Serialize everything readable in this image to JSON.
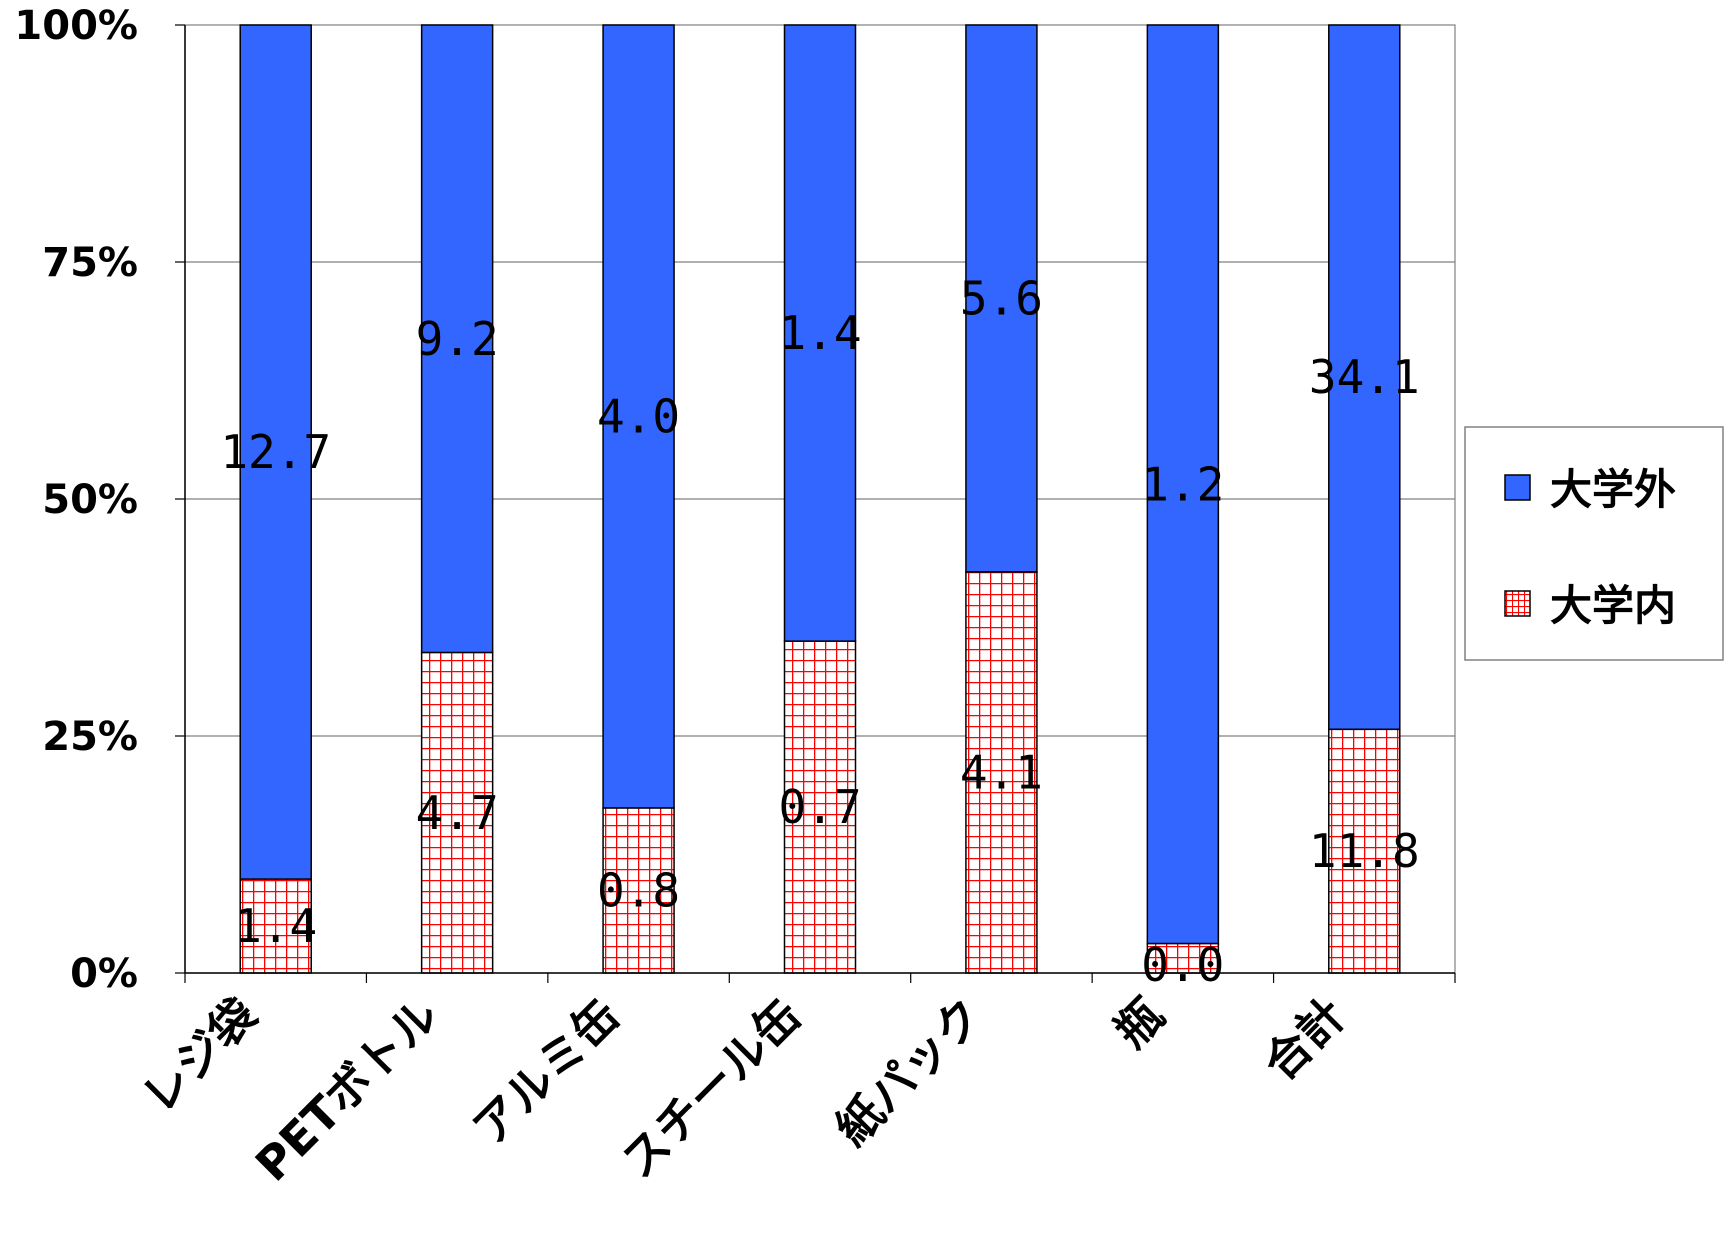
{
  "chart_data": {
    "type": "bar",
    "stacked": "percent",
    "categories": [
      "レジ袋",
      "PETボトル",
      "アルミ缶",
      "スチール缶",
      "紙パック",
      "瓶",
      "合計"
    ],
    "series": [
      {
        "name": "大学内",
        "values": [
          1.4,
          4.7,
          0.8,
          0.7,
          4.1,
          0.0,
          11.8
        ],
        "labels": [
          "1.4",
          "4.7",
          "0.8",
          "0.7",
          "4.1",
          "0.0",
          "11.8"
        ],
        "color": "#ff0000",
        "fill": "grid-hatch",
        "share_pct": [
          9.9,
          33.8,
          17.4,
          35.0,
          42.3,
          3.1,
          25.7
        ]
      },
      {
        "name": "大学外",
        "values": [
          12.7,
          9.2,
          4.0,
          1.4,
          5.6,
          1.2,
          34.1
        ],
        "labels": [
          "12.7",
          "9.2",
          "4.0",
          "1.4",
          "5.6",
          "1.2",
          "34.1"
        ],
        "color": "#3366ff",
        "fill": "solid"
      }
    ],
    "ylim": [
      0,
      100
    ],
    "yticks": [
      "0%",
      "25%",
      "50%",
      "75%",
      "100%"
    ],
    "grid": true,
    "legend": "right",
    "xlabel": "",
    "ylabel": "",
    "title": ""
  }
}
